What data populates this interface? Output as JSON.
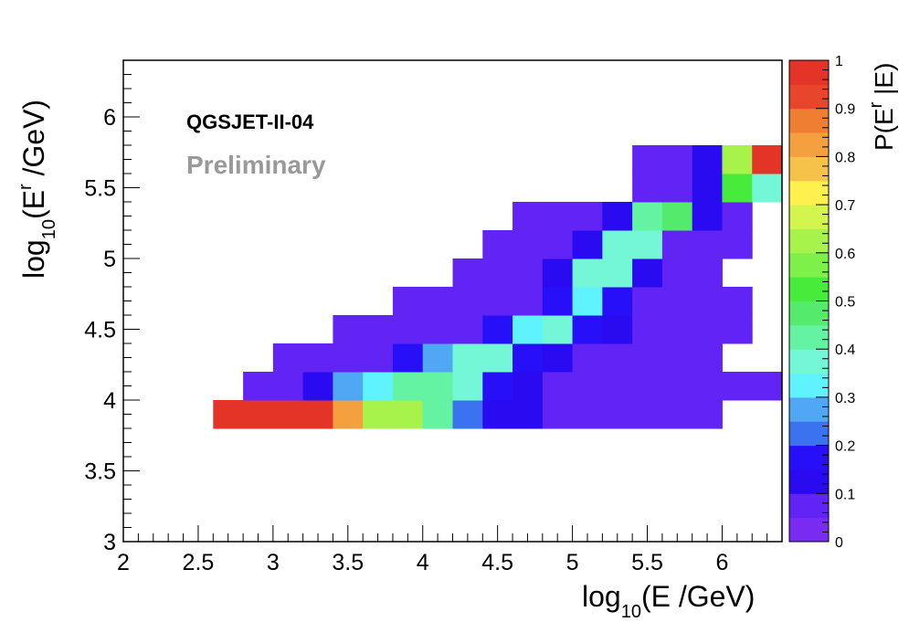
{
  "chart_data": {
    "type": "heatmap",
    "xlabel": {
      "prefix": "log",
      "sub": "10",
      "rest": "(E /GeV)"
    },
    "ylabel": {
      "prefix": "log",
      "sub": "10",
      "rest1": "(E",
      "sup": "r",
      "rest2": " /GeV)"
    },
    "zlabel": {
      "prefix": "P(E",
      "sup": "r",
      "rest": " |E)"
    },
    "annotations": {
      "model": "QGSJET-II-04",
      "status": "Preliminary"
    },
    "xlim": [
      2,
      6.4
    ],
    "ylim": [
      3,
      6.4
    ],
    "zlim": [
      0,
      1
    ],
    "x_ticks": [
      "2",
      "2.5",
      "3",
      "3.5",
      "4",
      "4.5",
      "5",
      "5.5",
      "6"
    ],
    "y_ticks": [
      "3",
      "3.5",
      "4",
      "4.5",
      "5",
      "5.5",
      "6"
    ],
    "z_ticks": [
      "0",
      "0.1",
      "0.2",
      "0.3",
      "0.4",
      "0.5",
      "0.6",
      "0.7",
      "0.8",
      "0.9",
      "1"
    ],
    "x_bin_edges_start": 2.6,
    "x_bin_width": 0.2,
    "y_bin_edges_start": 3.8,
    "y_bin_width": 0.2,
    "rows_bottom_to_top": [
      [
        1,
        1,
        1,
        1,
        0.8,
        0.62,
        0.62,
        0.4,
        0.22,
        0.1,
        0.1,
        0.05,
        0.05,
        0.05,
        0.05,
        0.05,
        0.05,
        null,
        null
      ],
      [
        null,
        0.05,
        0.05,
        0.1,
        0.25,
        0.3,
        0.4,
        0.4,
        0.35,
        0.18,
        0.1,
        0.05,
        0.05,
        0.05,
        0.05,
        0.05,
        0.05,
        0.05,
        0.05
      ],
      [
        null,
        null,
        0.05,
        0.05,
        0.05,
        0.05,
        0.18,
        0.25,
        0.35,
        0.35,
        0.18,
        0.12,
        0.05,
        0.05,
        0.05,
        0.05,
        0.05,
        null,
        null
      ],
      [
        null,
        null,
        null,
        null,
        0.05,
        0.05,
        0.05,
        0.05,
        0.05,
        0.18,
        0.3,
        0.35,
        0.18,
        0.12,
        0.05,
        0.05,
        0.05,
        0.05,
        null
      ],
      [
        null,
        null,
        null,
        null,
        null,
        null,
        0.05,
        0.05,
        0.05,
        0.05,
        0.05,
        0.18,
        0.3,
        0.18,
        0.05,
        0.05,
        0.05,
        0.05,
        null
      ],
      [
        null,
        null,
        null,
        null,
        null,
        null,
        null,
        null,
        0.05,
        0.05,
        0.05,
        0.12,
        0.35,
        0.35,
        0.12,
        0.05,
        0.05,
        null,
        null
      ],
      [
        null,
        null,
        null,
        null,
        null,
        null,
        null,
        null,
        null,
        0.05,
        0.05,
        0.05,
        0.12,
        0.35,
        0.38,
        0.05,
        0.05,
        0.05,
        null
      ],
      [
        null,
        null,
        null,
        null,
        null,
        null,
        null,
        null,
        null,
        null,
        0.05,
        0.05,
        0.05,
        0.12,
        0.4,
        0.48,
        0.12,
        0.05,
        null
      ],
      [
        null,
        null,
        null,
        null,
        null,
        null,
        null,
        null,
        null,
        null,
        null,
        null,
        null,
        null,
        0.05,
        0.05,
        0.12,
        0.5,
        0.35
      ],
      [
        null,
        null,
        null,
        null,
        null,
        null,
        null,
        null,
        null,
        null,
        null,
        null,
        null,
        null,
        0.05,
        0.05,
        0.12,
        0.6,
        1
      ]
    ]
  }
}
